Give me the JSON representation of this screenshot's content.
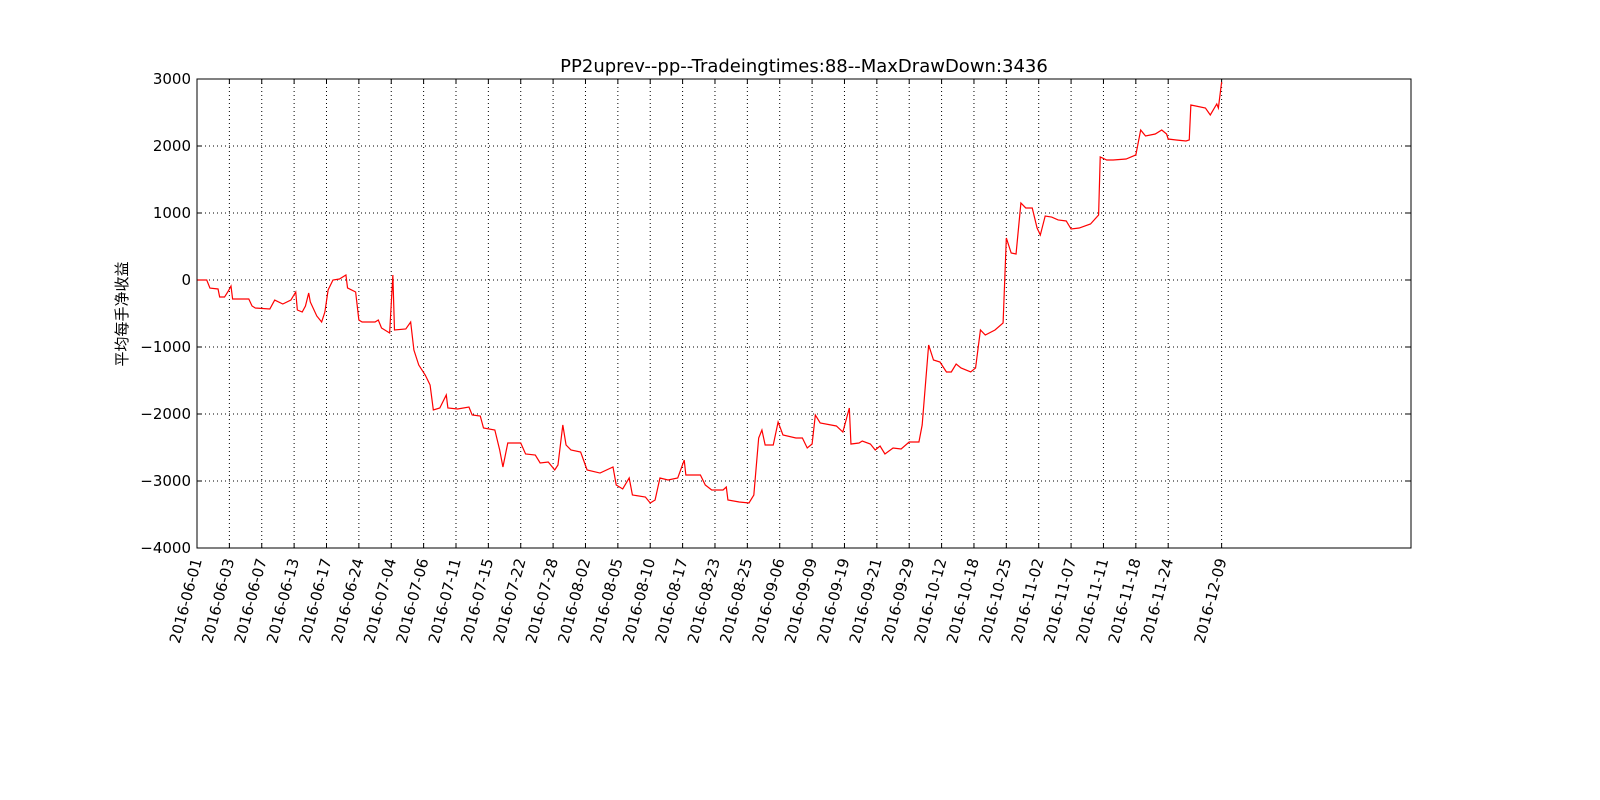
{
  "chart_data": {
    "type": "line",
    "title": "PP2uprev--pp--Tradeingtimes:88--MaxDrawDown:3436",
    "y_label": "平均每手净收益",
    "grid": true,
    "xlim": [
      0,
      750
    ],
    "ylim": [
      -4000,
      3000
    ],
    "yticks": [
      {
        "value": -4000,
        "label": "−4000"
      },
      {
        "value": -3000,
        "label": "−3000"
      },
      {
        "value": -2000,
        "label": "−2000"
      },
      {
        "value": -1000,
        "label": "−1000"
      },
      0,
      1000,
      2000,
      3000
    ],
    "xticks": [
      {
        "value": 0,
        "label": "2016-06-01"
      },
      {
        "value": 20,
        "label": "2016-06-03"
      },
      {
        "value": 40,
        "label": "2016-06-07"
      },
      {
        "value": 60,
        "label": "2016-06-13"
      },
      {
        "value": 80,
        "label": "2016-06-17"
      },
      {
        "value": 100,
        "label": "2016-06-24"
      },
      {
        "value": 120,
        "label": "2016-07-04"
      },
      {
        "value": 140,
        "label": "2016-07-06"
      },
      {
        "value": 160,
        "label": "2016-07-11"
      },
      {
        "value": 180,
        "label": "2016-07-15"
      },
      {
        "value": 200,
        "label": "2016-07-22"
      },
      {
        "value": 220,
        "label": "2016-07-28"
      },
      {
        "value": 240,
        "label": "2016-08-02"
      },
      {
        "value": 260,
        "label": "2016-08-05"
      },
      {
        "value": 280,
        "label": "2016-08-10"
      },
      {
        "value": 300,
        "label": "2016-08-17"
      },
      {
        "value": 320,
        "label": "2016-08-23"
      },
      {
        "value": 340,
        "label": "2016-08-25"
      },
      {
        "value": 360,
        "label": "2016-09-06"
      },
      {
        "value": 380,
        "label": "2016-09-09"
      },
      {
        "value": 400,
        "label": "2016-09-19"
      },
      {
        "value": 420,
        "label": "2016-09-21"
      },
      {
        "value": 440,
        "label": "2016-09-29"
      },
      {
        "value": 460,
        "label": "2016-10-12"
      },
      {
        "value": 480,
        "label": "2016-10-18"
      },
      {
        "value": 500,
        "label": "2016-10-25"
      },
      {
        "value": 520,
        "label": "2016-11-02"
      },
      {
        "value": 540,
        "label": "2016-11-07"
      },
      {
        "value": 560,
        "label": "2016-11-11"
      },
      {
        "value": 580,
        "label": "2016-11-18"
      },
      {
        "value": 600,
        "label": "2016-11-24"
      },
      {
        "value": 633,
        "label": "2016-12-09"
      }
    ],
    "x": [
      0,
      6,
      8,
      13,
      14,
      17,
      19,
      21,
      22,
      32,
      34,
      36,
      45,
      48,
      53,
      58,
      61,
      62,
      65,
      67,
      69,
      70,
      74,
      77,
      79,
      81,
      84,
      88,
      92,
      93,
      98,
      100,
      102,
      110,
      112,
      114,
      119,
      121,
      122,
      129,
      132,
      134,
      137,
      141,
      144,
      146,
      150,
      154,
      155,
      161,
      168,
      170,
      175,
      177,
      184,
      187,
      189,
      192,
      200,
      203,
      209,
      212,
      217,
      221,
      223,
      226,
      228,
      231,
      237,
      241,
      249,
      257,
      259,
      263,
      267,
      269,
      277,
      280,
      283,
      286,
      291,
      297,
      301,
      302,
      311,
      314,
      318,
      325,
      327,
      328,
      335,
      341,
      344,
      347,
      349,
      351,
      356,
      359,
      362,
      370,
      374,
      377,
      380,
      382,
      385,
      395,
      399,
      403,
      404,
      409,
      411,
      416,
      419,
      422,
      425,
      430,
      435,
      440,
      446,
      448,
      452,
      455,
      459,
      463,
      466,
      469,
      472,
      478,
      481,
      484,
      487,
      493,
      498,
      500,
      503,
      506,
      509,
      512,
      516,
      519,
      521,
      524,
      528,
      532,
      537,
      540,
      545,
      552,
      557,
      558,
      562,
      566,
      574,
      580,
      583,
      586,
      592,
      596,
      599,
      600,
      605,
      611,
      613,
      614,
      617,
      623,
      626,
      630,
      631,
      633
    ],
    "series": [
      {
        "color": "#ff0000",
        "values": [
          0,
          0,
          -120,
          -134,
          -254,
          -254,
          -179,
          -90,
          -284,
          -284,
          -388,
          -418,
          -433,
          -299,
          -358,
          -299,
          -179,
          -448,
          -478,
          -388,
          -194,
          -328,
          -537,
          -627,
          -478,
          -149,
          0,
          15,
          75,
          -119,
          -179,
          -597,
          -627,
          -627,
          -597,
          -716,
          -791,
          75,
          -746,
          -731,
          -627,
          -1045,
          -1269,
          -1418,
          -1567,
          -1940,
          -1910,
          -1716,
          -1910,
          -1925,
          -1896,
          -2015,
          -2030,
          -2209,
          -2239,
          -2537,
          -2791,
          -2433,
          -2433,
          -2597,
          -2612,
          -2731,
          -2716,
          -2836,
          -2761,
          -2164,
          -2463,
          -2537,
          -2567,
          -2836,
          -2881,
          -2791,
          -3060,
          -3119,
          -2955,
          -3209,
          -3239,
          -3328,
          -3284,
          -2955,
          -2985,
          -2955,
          -2687,
          -2910,
          -2910,
          -3060,
          -3134,
          -3134,
          -3090,
          -3284,
          -3313,
          -3328,
          -3209,
          -2358,
          -2239,
          -2463,
          -2463,
          -2119,
          -2313,
          -2358,
          -2358,
          -2507,
          -2448,
          -2015,
          -2134,
          -2179,
          -2269,
          -1910,
          -2448,
          -2433,
          -2403,
          -2448,
          -2537,
          -2478,
          -2597,
          -2507,
          -2522,
          -2418,
          -2418,
          -2164,
          -970,
          -1194,
          -1224,
          -1373,
          -1373,
          -1254,
          -1313,
          -1373,
          -1313,
          -746,
          -821,
          -746,
          -642,
          627,
          403,
          388,
          1149,
          1075,
          1075,
          776,
          672,
          955,
          940,
          896,
          881,
          761,
          776,
          836,
          970,
          1836,
          1791,
          1791,
          1806,
          1866,
          2239,
          2149,
          2179,
          2239,
          2179,
          2104,
          2090,
          2075,
          2090,
          2612,
          2597,
          2567,
          2463,
          2627,
          2567,
          2955
        ]
      }
    ]
  }
}
